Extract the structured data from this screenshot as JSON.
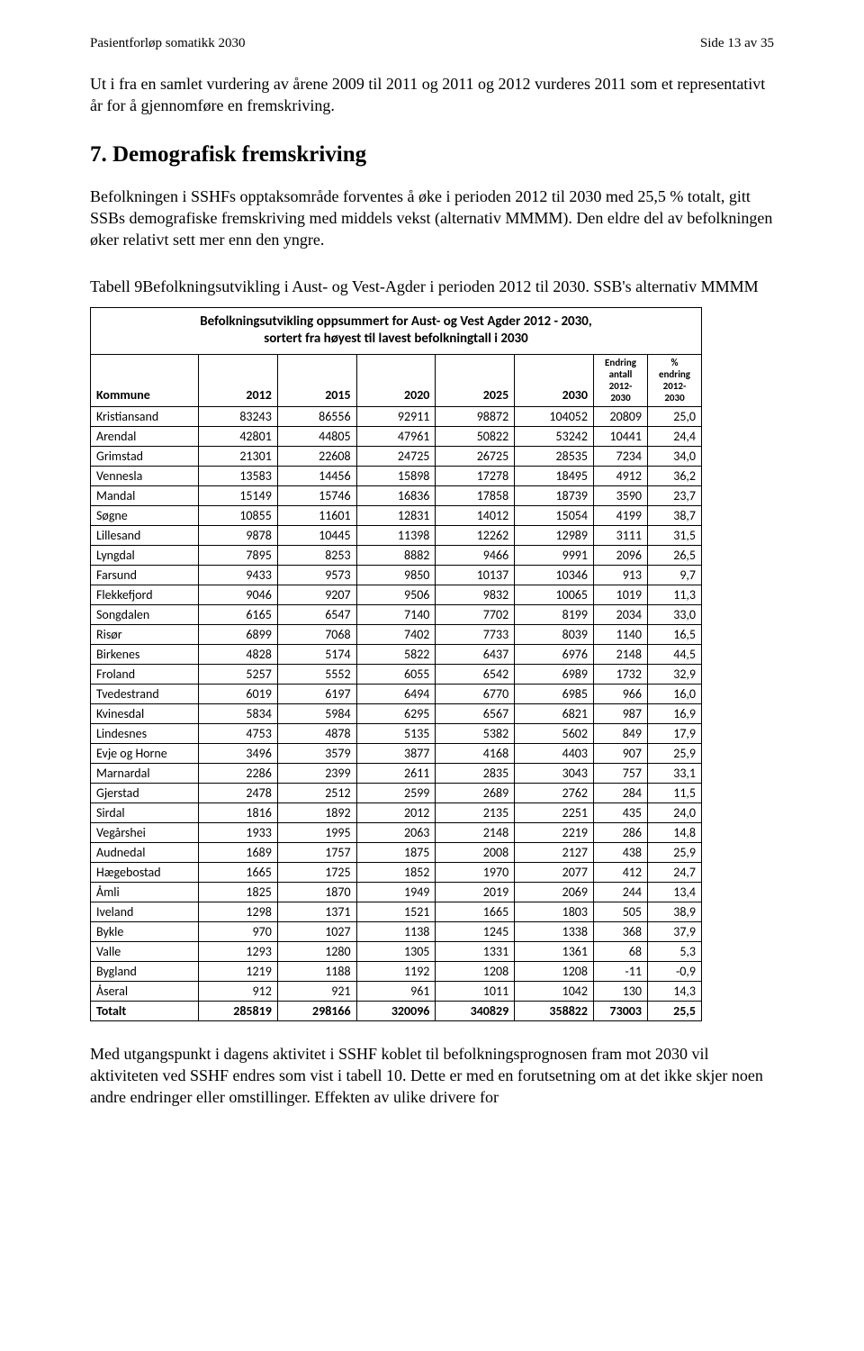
{
  "header": {
    "left": "Pasientforløp somatikk 2030",
    "right": "Side 13 av 35"
  },
  "intro_paragraph": "Ut i fra en samlet vurdering av årene 2009 til 2011 og 2011 og 2012 vurderes 2011 som et representativt år for å gjennomføre en fremskriving.",
  "section": {
    "number": "7.",
    "title": "Demografisk fremskriving"
  },
  "section_body": "Befolkningen i SSHFs opptaksområde forventes å øke i perioden 2012 til 2030 med 25,5 % totalt, gitt SSBs demografiske fremskriving med middels vekst (alternativ MMMM). Den eldre del av befolkningen øker relativt sett mer enn den yngre.",
  "table_caption": "Tabell 9Befolkningsutvikling i Aust- og Vest-Agder i perioden 2012 til 2030. SSB's alternativ MMMM",
  "table": {
    "title_line1": "Befolkningsutvikling oppsummert for Aust- og Vest Agder 2012 - 2030,",
    "title_line2": "sortert fra høyest til lavest befolkningtall i 2030",
    "col_kommune": "Kommune",
    "col_years": [
      "2012",
      "2015",
      "2020",
      "2025",
      "2030"
    ],
    "col_endring_l1": "Endring",
    "col_endring_l2": "antall",
    "col_endring_l3": "2012-",
    "col_endring_l4": "2030",
    "col_pct_l1": "%",
    "col_pct_l2": "endring",
    "col_pct_l3": "2012-",
    "col_pct_l4": "2030",
    "rows": [
      {
        "k": "Kristiansand",
        "v": [
          "83243",
          "86556",
          "92911",
          "98872",
          "104052",
          "20809",
          "25,0"
        ]
      },
      {
        "k": "Arendal",
        "v": [
          "42801",
          "44805",
          "47961",
          "50822",
          "53242",
          "10441",
          "24,4"
        ]
      },
      {
        "k": "Grimstad",
        "v": [
          "21301",
          "22608",
          "24725",
          "26725",
          "28535",
          "7234",
          "34,0"
        ]
      },
      {
        "k": "Vennesla",
        "v": [
          "13583",
          "14456",
          "15898",
          "17278",
          "18495",
          "4912",
          "36,2"
        ]
      },
      {
        "k": "Mandal",
        "v": [
          "15149",
          "15746",
          "16836",
          "17858",
          "18739",
          "3590",
          "23,7"
        ]
      },
      {
        "k": "Søgne",
        "v": [
          "10855",
          "11601",
          "12831",
          "14012",
          "15054",
          "4199",
          "38,7"
        ]
      },
      {
        "k": "Lillesand",
        "v": [
          "9878",
          "10445",
          "11398",
          "12262",
          "12989",
          "3111",
          "31,5"
        ]
      },
      {
        "k": "Lyngdal",
        "v": [
          "7895",
          "8253",
          "8882",
          "9466",
          "9991",
          "2096",
          "26,5"
        ]
      },
      {
        "k": "Farsund",
        "v": [
          "9433",
          "9573",
          "9850",
          "10137",
          "10346",
          "913",
          "9,7"
        ]
      },
      {
        "k": "Flekkefjord",
        "v": [
          "9046",
          "9207",
          "9506",
          "9832",
          "10065",
          "1019",
          "11,3"
        ]
      },
      {
        "k": "Songdalen",
        "v": [
          "6165",
          "6547",
          "7140",
          "7702",
          "8199",
          "2034",
          "33,0"
        ]
      },
      {
        "k": "Risør",
        "v": [
          "6899",
          "7068",
          "7402",
          "7733",
          "8039",
          "1140",
          "16,5"
        ]
      },
      {
        "k": "Birkenes",
        "v": [
          "4828",
          "5174",
          "5822",
          "6437",
          "6976",
          "2148",
          "44,5"
        ]
      },
      {
        "k": "Froland",
        "v": [
          "5257",
          "5552",
          "6055",
          "6542",
          "6989",
          "1732",
          "32,9"
        ]
      },
      {
        "k": "Tvedestrand",
        "v": [
          "6019",
          "6197",
          "6494",
          "6770",
          "6985",
          "966",
          "16,0"
        ]
      },
      {
        "k": "Kvinesdal",
        "v": [
          "5834",
          "5984",
          "6295",
          "6567",
          "6821",
          "987",
          "16,9"
        ]
      },
      {
        "k": "Lindesnes",
        "v": [
          "4753",
          "4878",
          "5135",
          "5382",
          "5602",
          "849",
          "17,9"
        ]
      },
      {
        "k": "Evje og Horne",
        "v": [
          "3496",
          "3579",
          "3877",
          "4168",
          "4403",
          "907",
          "25,9"
        ]
      },
      {
        "k": "Marnardal",
        "v": [
          "2286",
          "2399",
          "2611",
          "2835",
          "3043",
          "757",
          "33,1"
        ]
      },
      {
        "k": "Gjerstad",
        "v": [
          "2478",
          "2512",
          "2599",
          "2689",
          "2762",
          "284",
          "11,5"
        ]
      },
      {
        "k": "Sirdal",
        "v": [
          "1816",
          "1892",
          "2012",
          "2135",
          "2251",
          "435",
          "24,0"
        ]
      },
      {
        "k": "Vegårshei",
        "v": [
          "1933",
          "1995",
          "2063",
          "2148",
          "2219",
          "286",
          "14,8"
        ]
      },
      {
        "k": "Audnedal",
        "v": [
          "1689",
          "1757",
          "1875",
          "2008",
          "2127",
          "438",
          "25,9"
        ]
      },
      {
        "k": "Hægebostad",
        "v": [
          "1665",
          "1725",
          "1852",
          "1970",
          "2077",
          "412",
          "24,7"
        ]
      },
      {
        "k": "Åmli",
        "v": [
          "1825",
          "1870",
          "1949",
          "2019",
          "2069",
          "244",
          "13,4"
        ]
      },
      {
        "k": "Iveland",
        "v": [
          "1298",
          "1371",
          "1521",
          "1665",
          "1803",
          "505",
          "38,9"
        ]
      },
      {
        "k": "Bykle",
        "v": [
          "970",
          "1027",
          "1138",
          "1245",
          "1338",
          "368",
          "37,9"
        ]
      },
      {
        "k": "Valle",
        "v": [
          "1293",
          "1280",
          "1305",
          "1331",
          "1361",
          "68",
          "5,3"
        ]
      },
      {
        "k": "Bygland",
        "v": [
          "1219",
          "1188",
          "1192",
          "1208",
          "1208",
          "-11",
          "-0,9"
        ]
      },
      {
        "k": "Åseral",
        "v": [
          "912",
          "921",
          "961",
          "1011",
          "1042",
          "130",
          "14,3"
        ]
      }
    ],
    "total": {
      "k": "Totalt",
      "v": [
        "285819",
        "298166",
        "320096",
        "340829",
        "358822",
        "73003",
        "25,5"
      ]
    }
  },
  "closing_paragraph": "Med utgangspunkt i dagens aktivitet i SSHF koblet til befolkningsprognosen fram mot 2030 vil aktiviteten ved SSHF endres som vist i tabell 10. Dette er med en forutsetning om at det ikke skjer noen andre endringer eller omstillinger. Effekten av ulike drivere for"
}
